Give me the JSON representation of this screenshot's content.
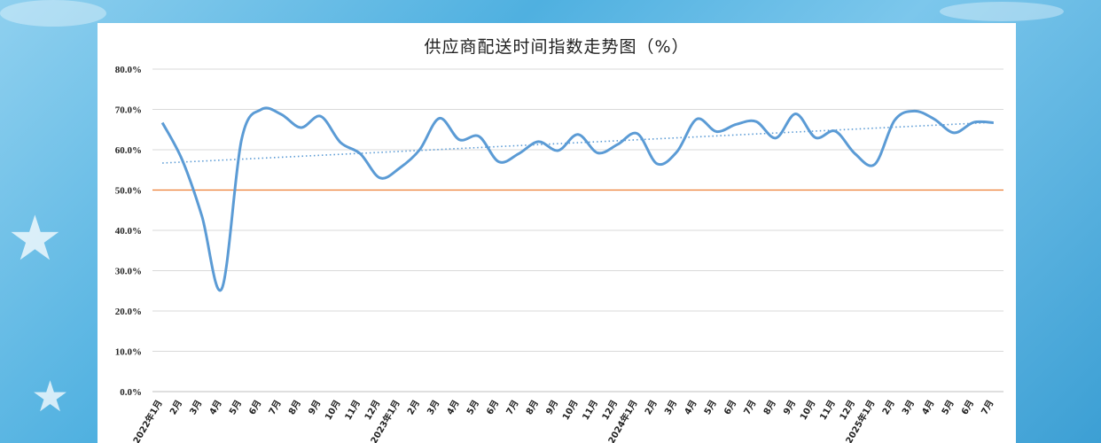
{
  "chart_data": {
    "type": "line",
    "title": "供应商配送时间指数走势图（%）",
    "xlabel": "",
    "ylabel": "",
    "ylim": [
      0,
      80
    ],
    "y_ticks": [
      "0.0%",
      "10.0%",
      "20.0%",
      "30.0%",
      "40.0%",
      "50.0%",
      "60.0%",
      "70.0%",
      "80.0%"
    ],
    "categories": [
      "2022年1月",
      "2月",
      "3月",
      "4月",
      "5月",
      "6月",
      "7月",
      "8月",
      "9月",
      "10月",
      "11月",
      "12月",
      "2023年1月",
      "2月",
      "3月",
      "4月",
      "5月",
      "6月",
      "7月",
      "8月",
      "9月",
      "10月",
      "11月",
      "12月",
      "2024年1月",
      "2月",
      "3月",
      "4月",
      "5月",
      "6月",
      "7月",
      "8月",
      "9月",
      "10月",
      "11月",
      "12月",
      "2025年1月",
      "2月",
      "3月",
      "4月",
      "5月",
      "6月",
      "7月"
    ],
    "series": [
      {
        "values": [
          66.7,
          57.5,
          43.5,
          25.5,
          62.5,
          70.0,
          68.8,
          65.5,
          68.3,
          61.8,
          59.0,
          53.0,
          55.5,
          60.0,
          67.8,
          62.5,
          63.3,
          57.0,
          59.0,
          62.0,
          59.8,
          63.8,
          59.2,
          61.3,
          64.0,
          56.5,
          59.5,
          67.6,
          64.5,
          66.3,
          67.0,
          62.9,
          68.9,
          63.0,
          64.6,
          59.0,
          56.4,
          67.3,
          69.6,
          67.6,
          64.2,
          66.8,
          66.7
        ],
        "color": "#5b9bd5"
      }
    ],
    "reference_line": {
      "value": 50,
      "color": "#ed7d31"
    },
    "trendline": {
      "start": 56.7,
      "end": 66.8,
      "color": "#5b9bd5",
      "style": "dotted"
    },
    "grid": true,
    "legend": "none"
  }
}
